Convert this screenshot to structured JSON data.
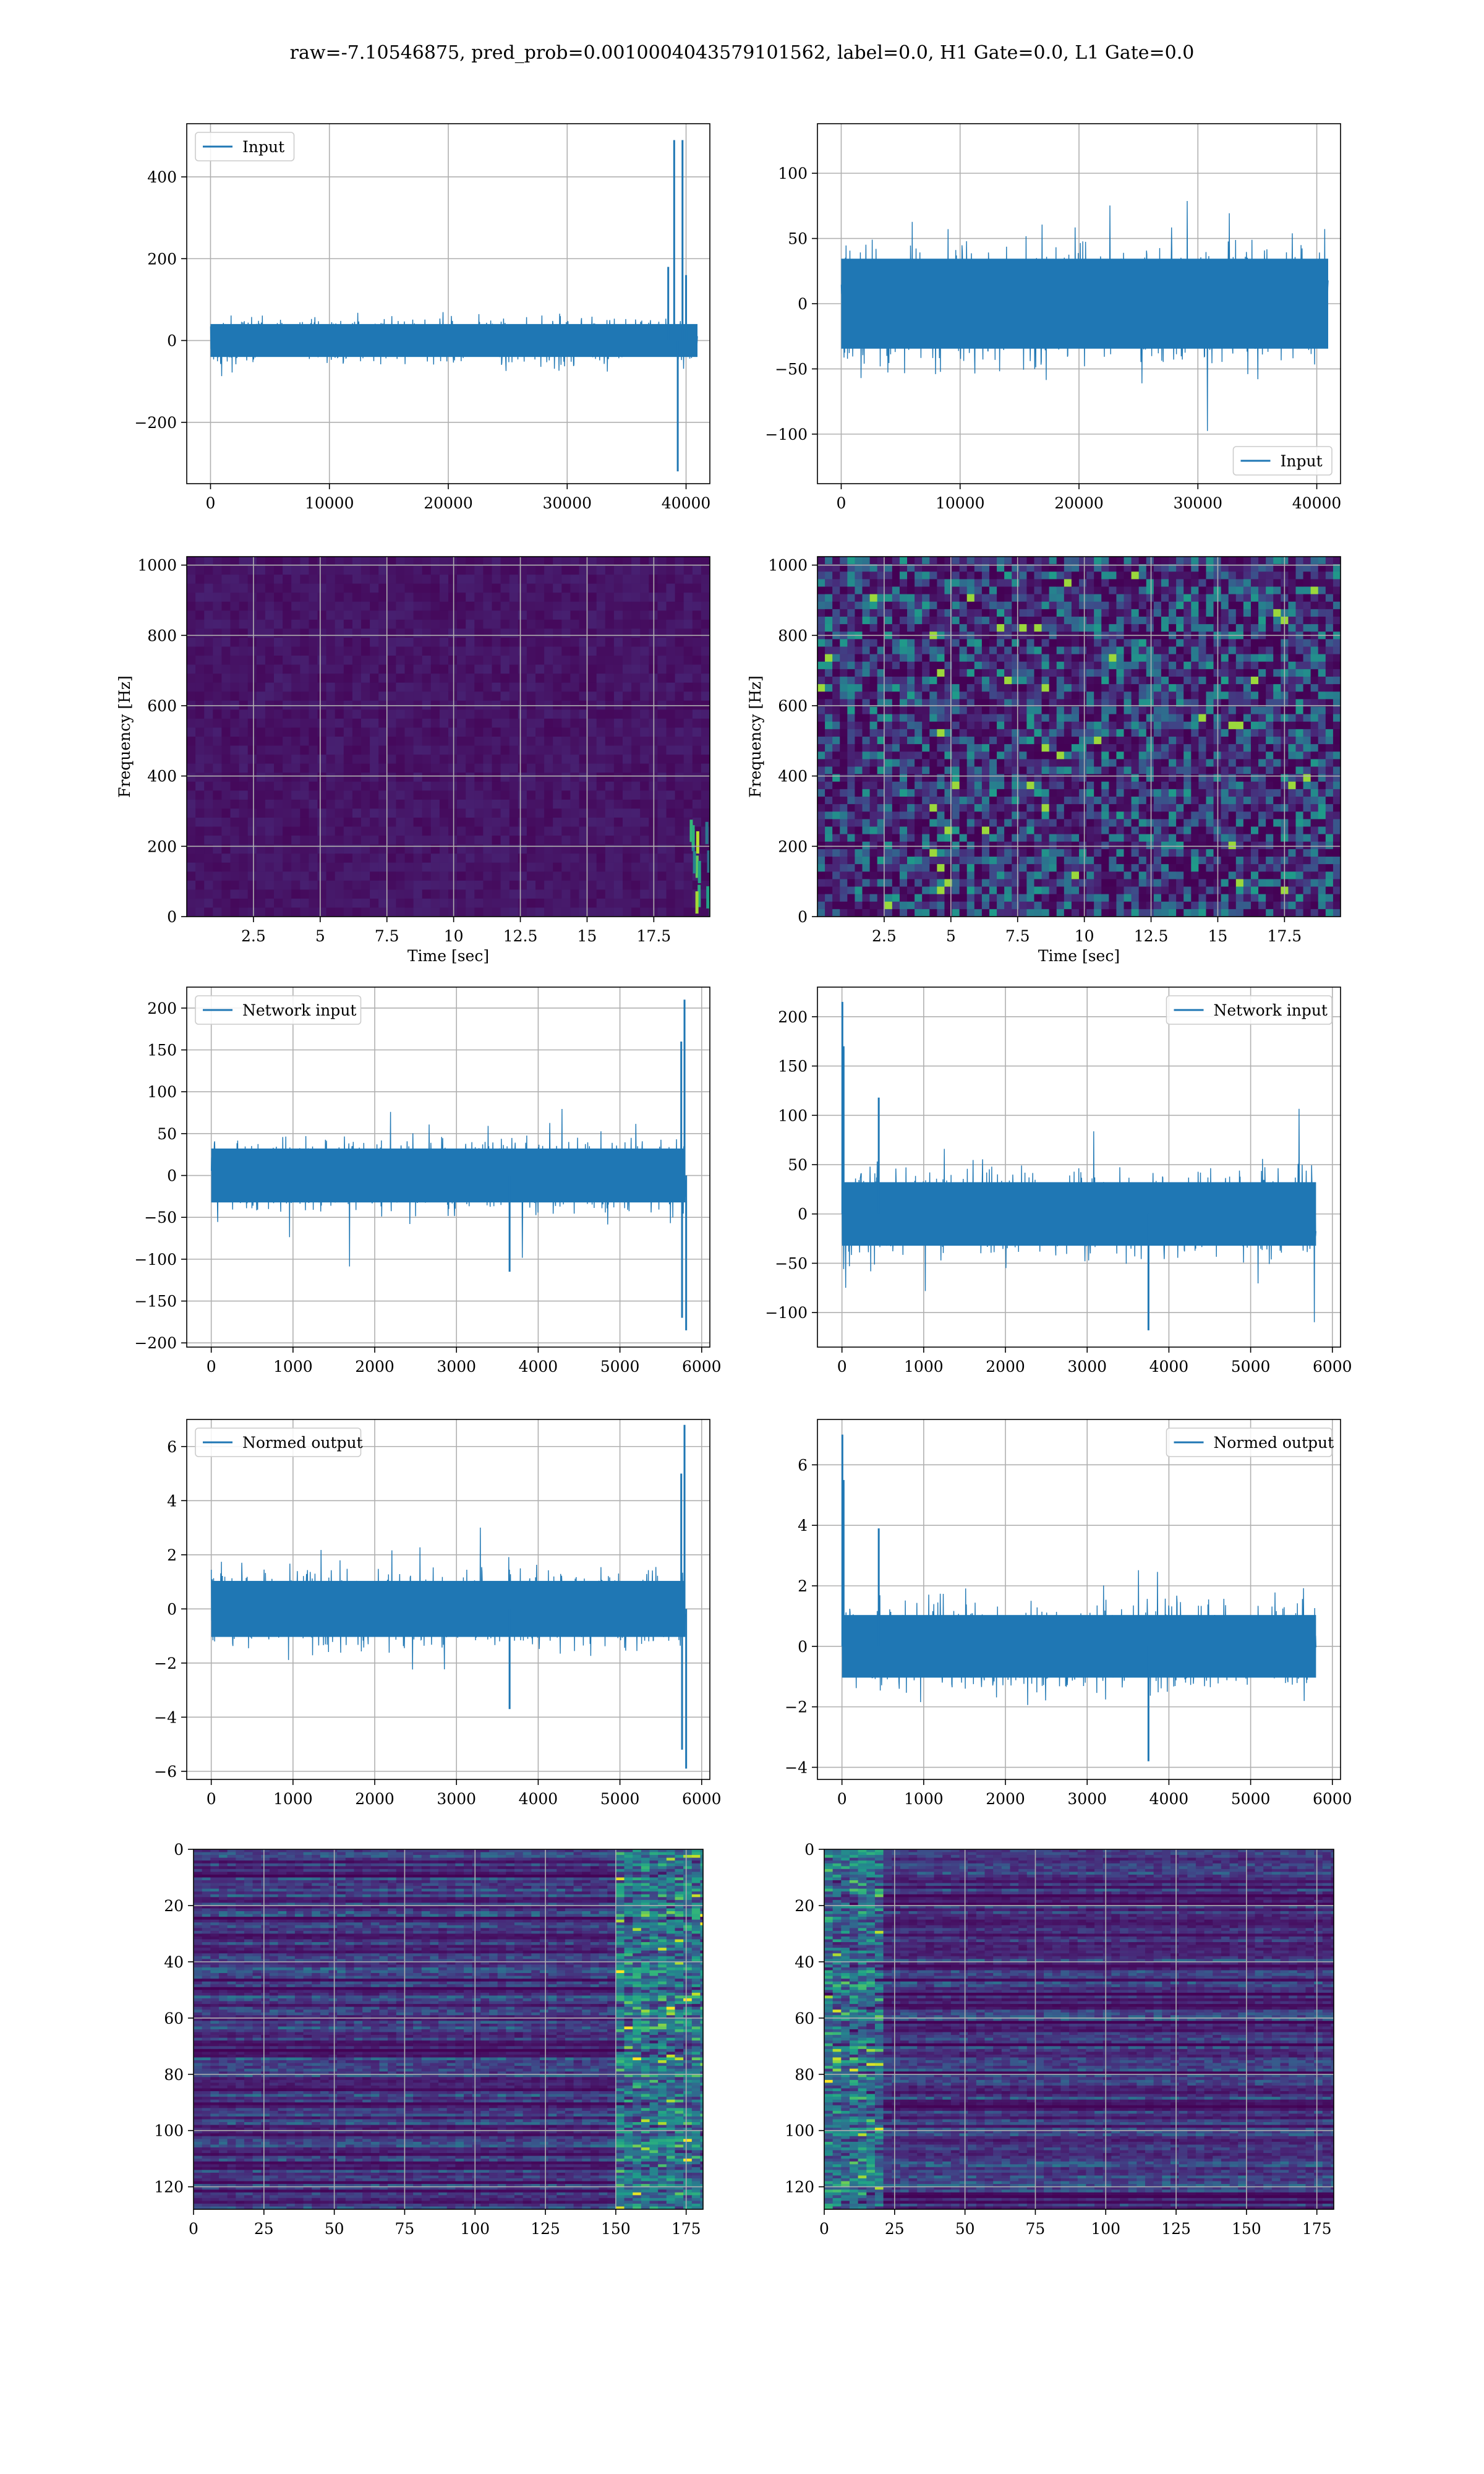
{
  "figure": {
    "title": "raw=-7.10546875, pred_prob=0.0010004043579101562, label=0.0, H1 Gate=0.0, L1 Gate=0.0"
  },
  "colors": {
    "line": "#1f77b4",
    "grid": "#b0b0b0"
  },
  "chart_data": [
    {
      "id": "input-h1",
      "type": "line",
      "series": [
        {
          "name": "Input"
        }
      ],
      "legend": "top-left",
      "xlim": [
        -2000,
        42000
      ],
      "ylim": [
        -350,
        530
      ],
      "xticks": [
        0,
        10000,
        20000,
        30000,
        40000
      ],
      "yticks": [
        -200,
        0,
        200,
        400
      ],
      "signal": {
        "n": 40960,
        "amplitude": 35,
        "spikes": [
          [
            38500,
            180
          ],
          [
            39000,
            490
          ],
          [
            39300,
            -320
          ],
          [
            39700,
            490
          ],
          [
            40000,
            160
          ]
        ]
      }
    },
    {
      "id": "input-l1",
      "type": "line",
      "series": [
        {
          "name": "Input"
        }
      ],
      "legend": "bottom-right",
      "xlim": [
        -2000,
        42000
      ],
      "ylim": [
        -138,
        138
      ],
      "xticks": [
        0,
        10000,
        20000,
        30000,
        40000
      ],
      "yticks": [
        -100,
        -50,
        0,
        50,
        100
      ],
      "signal": {
        "n": 40960,
        "amplitude": 30,
        "spikes": []
      }
    },
    {
      "id": "spec-h1",
      "type": "heatmap",
      "colormap": "viridis",
      "xlabel": "Time [sec]",
      "ylabel": "Frequency [Hz]",
      "xlim": [
        0,
        19.6
      ],
      "ylim": [
        0,
        1024
      ],
      "xticks": [
        2.5,
        5.0,
        7.5,
        10.0,
        12.5,
        15.0,
        17.5
      ],
      "yticks": [
        0,
        200,
        400,
        600,
        800,
        1000
      ],
      "intensity": "dark",
      "hot_region": {
        "t": [
          18.8,
          19.6
        ],
        "f": [
          0,
          250
        ]
      }
    },
    {
      "id": "spec-l1",
      "type": "heatmap",
      "colormap": "viridis",
      "xlabel": "Time [sec]",
      "ylabel": "Frequency [Hz]",
      "xlim": [
        0,
        19.6
      ],
      "ylim": [
        0,
        1024
      ],
      "xticks": [
        2.5,
        5.0,
        7.5,
        10.0,
        12.5,
        15.0,
        17.5
      ],
      "yticks": [
        0,
        200,
        400,
        600,
        800,
        1000
      ],
      "intensity": "speckled"
    },
    {
      "id": "net-h1",
      "type": "line",
      "series": [
        {
          "name": "Network input"
        }
      ],
      "legend": "top-left",
      "xlim": [
        -300,
        6100
      ],
      "ylim": [
        -205,
        225
      ],
      "xticks": [
        0,
        1000,
        2000,
        3000,
        4000,
        5000,
        6000
      ],
      "yticks": [
        -200,
        -150,
        -100,
        -50,
        0,
        50,
        100,
        150,
        200
      ],
      "signal": {
        "n": 5800,
        "amplitude": 28,
        "spikes": [
          [
            3650,
            -115
          ],
          [
            5750,
            160
          ],
          [
            5790,
            210
          ],
          [
            5810,
            -185
          ],
          [
            5760,
            -170
          ]
        ]
      }
    },
    {
      "id": "net-l1",
      "type": "line",
      "series": [
        {
          "name": "Network input"
        }
      ],
      "legend": "top-right",
      "xlim": [
        -300,
        6100
      ],
      "ylim": [
        -135,
        230
      ],
      "xticks": [
        0,
        1000,
        2000,
        3000,
        4000,
        5000,
        6000
      ],
      "yticks": [
        -100,
        -50,
        0,
        50,
        100,
        150,
        200
      ],
      "signal": {
        "n": 5800,
        "amplitude": 28,
        "spikes": [
          [
            5,
            215
          ],
          [
            20,
            170
          ],
          [
            450,
            118
          ],
          [
            3750,
            -118
          ]
        ]
      }
    },
    {
      "id": "norm-h1",
      "type": "line",
      "series": [
        {
          "name": "Normed output"
        }
      ],
      "legend": "top-left",
      "xlim": [
        -300,
        6100
      ],
      "ylim": [
        -6.3,
        7.0
      ],
      "xticks": [
        0,
        1000,
        2000,
        3000,
        4000,
        5000,
        6000
      ],
      "yticks": [
        -6,
        -4,
        -2,
        0,
        2,
        4,
        6
      ],
      "signal": {
        "n": 5800,
        "amplitude": 0.9,
        "spikes": [
          [
            3650,
            -3.7
          ],
          [
            5750,
            5.0
          ],
          [
            5790,
            6.8
          ],
          [
            5810,
            -5.9
          ],
          [
            5760,
            -5.2
          ]
        ]
      }
    },
    {
      "id": "norm-l1",
      "type": "line",
      "series": [
        {
          "name": "Normed output"
        }
      ],
      "legend": "top-right",
      "xlim": [
        -300,
        6100
      ],
      "ylim": [
        -4.4,
        7.5
      ],
      "xticks": [
        0,
        1000,
        2000,
        3000,
        4000,
        5000,
        6000
      ],
      "yticks": [
        -4,
        -2,
        0,
        2,
        4,
        6
      ],
      "signal": {
        "n": 5800,
        "amplitude": 0.9,
        "spikes": [
          [
            5,
            7.0
          ],
          [
            20,
            5.5
          ],
          [
            450,
            3.9
          ],
          [
            3750,
            -3.8
          ]
        ]
      }
    },
    {
      "id": "feat-h1",
      "type": "heatmap",
      "colormap": "viridis",
      "xlim": [
        0,
        181
      ],
      "ylim": [
        128,
        0
      ],
      "xticks": [
        0,
        25,
        50,
        75,
        100,
        125,
        150,
        175
      ],
      "yticks": [
        0,
        20,
        40,
        60,
        80,
        100,
        120
      ],
      "intensity": "feature",
      "hot_region": {
        "t": [
          150,
          181
        ]
      }
    },
    {
      "id": "feat-l1",
      "type": "heatmap",
      "colormap": "viridis",
      "xlim": [
        0,
        181
      ],
      "ylim": [
        128,
        0
      ],
      "xticks": [
        0,
        25,
        50,
        75,
        100,
        125,
        150,
        175
      ],
      "yticks": [
        0,
        20,
        40,
        60,
        80,
        100,
        120
      ],
      "intensity": "feature",
      "hot_region": {
        "t": [
          0,
          20
        ]
      }
    }
  ]
}
